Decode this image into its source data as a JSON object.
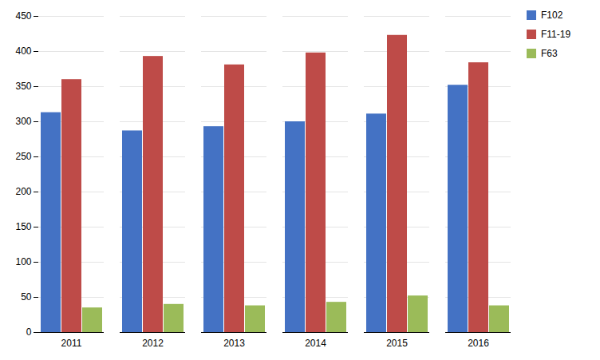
{
  "chart_data": {
    "type": "bar",
    "categories": [
      "2011",
      "2012",
      "2013",
      "2014",
      "2015",
      "2016"
    ],
    "series": [
      {
        "name": "F102",
        "color": "#4472C4",
        "values": [
          313,
          287,
          293,
          300,
          311,
          352
        ]
      },
      {
        "name": "F11-19",
        "color": "#BE4B48",
        "values": [
          360,
          393,
          381,
          398,
          423,
          384
        ]
      },
      {
        "name": "F63",
        "color": "#9BBB59",
        "values": [
          35,
          40,
          38,
          43,
          52,
          38
        ]
      }
    ],
    "ylim": [
      0,
      450
    ],
    "yticks": [
      0,
      50,
      100,
      150,
      200,
      250,
      300,
      350,
      400,
      450
    ],
    "grid": true,
    "legend": "upper right"
  }
}
